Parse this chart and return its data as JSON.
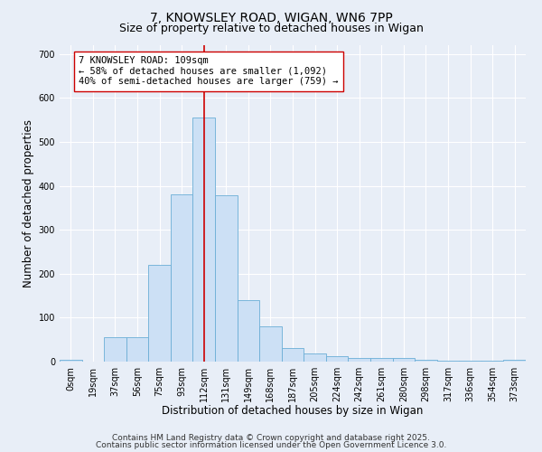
{
  "title_line1": "7, KNOWSLEY ROAD, WIGAN, WN6 7PP",
  "title_line2": "Size of property relative to detached houses in Wigan",
  "xlabel": "Distribution of detached houses by size in Wigan",
  "ylabel": "Number of detached properties",
  "bar_labels": [
    "0sqm",
    "19sqm",
    "37sqm",
    "56sqm",
    "75sqm",
    "93sqm",
    "112sqm",
    "131sqm",
    "149sqm",
    "168sqm",
    "187sqm",
    "205sqm",
    "224sqm",
    "242sqm",
    "261sqm",
    "280sqm",
    "298sqm",
    "317sqm",
    "336sqm",
    "354sqm",
    "373sqm"
  ],
  "bar_values": [
    5,
    0,
    55,
    55,
    220,
    380,
    555,
    378,
    140,
    80,
    30,
    18,
    13,
    8,
    8,
    8,
    5,
    3,
    2,
    2,
    5
  ],
  "bar_color": "#cce0f5",
  "bar_edgecolor": "#6baed6",
  "bar_width": 1.0,
  "vline_x": 6,
  "vline_color": "#cc0000",
  "annotation_text": "7 KNOWSLEY ROAD: 109sqm\n← 58% of detached houses are smaller (1,092)\n40% of semi-detached houses are larger (759) →",
  "annotation_box_edgecolor": "#cc0000",
  "annotation_box_facecolor": "#ffffff",
  "ylim": [
    0,
    720
  ],
  "yticks": [
    0,
    100,
    200,
    300,
    400,
    500,
    600,
    700
  ],
  "footer_line1": "Contains HM Land Registry data © Crown copyright and database right 2025.",
  "footer_line2": "Contains public sector information licensed under the Open Government Licence 3.0.",
  "background_color": "#e8eef7",
  "plot_background_color": "#e8eef7",
  "title_fontsize": 10,
  "subtitle_fontsize": 9,
  "axis_label_fontsize": 8.5,
  "tick_fontsize": 7,
  "annotation_fontsize": 7.5,
  "footer_fontsize": 6.5
}
